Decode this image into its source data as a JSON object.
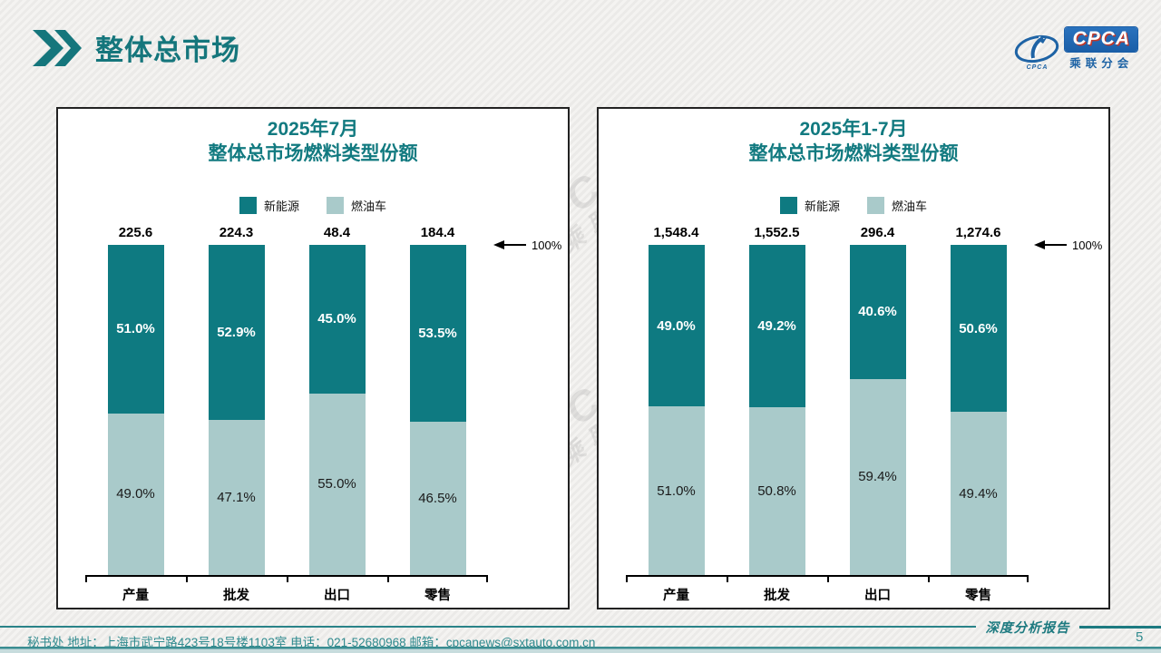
{
  "header": {
    "title": "整体总市场"
  },
  "logo": {
    "wordmark": "CPCA",
    "subtitle": "乘联分会"
  },
  "watermark": {
    "line1": "CPCA",
    "line2": "乘联"
  },
  "chart_data": [
    {
      "type": "bar",
      "stacked": true,
      "title_line1": "2025年7月",
      "title_line2": "整体总市场燃料类型份额",
      "categories": [
        "产量",
        "批发",
        "出口",
        "零售"
      ],
      "totals": [
        225.6,
        224.3,
        48.4,
        184.4
      ],
      "total_labels": [
        "225.6",
        "224.3",
        "48.4",
        "184.4"
      ],
      "series": [
        {
          "name": "新能源",
          "color": "#0e7a81",
          "values_pct": [
            51.0,
            52.9,
            45.0,
            53.5
          ],
          "pct_labels": [
            "51.0%",
            "52.9%",
            "45.0%",
            "53.5%"
          ]
        },
        {
          "name": "燃油车",
          "color": "#a9caca",
          "values_pct": [
            49.0,
            47.1,
            55.0,
            46.5
          ],
          "pct_labels": [
            "49.0%",
            "47.1%",
            "55.0%",
            "46.5%"
          ]
        }
      ],
      "axis_note": "100%",
      "ylim": [
        0,
        100
      ],
      "legend_position": "top",
      "grid": false
    },
    {
      "type": "bar",
      "stacked": true,
      "title_line1": "2025年1-7月",
      "title_line2": "整体总市场燃料类型份额",
      "categories": [
        "产量",
        "批发",
        "出口",
        "零售"
      ],
      "totals": [
        1548.4,
        1552.5,
        296.4,
        1274.6
      ],
      "total_labels": [
        "1,548.4",
        "1,552.5",
        "296.4",
        "1,274.6"
      ],
      "series": [
        {
          "name": "新能源",
          "color": "#0e7a81",
          "values_pct": [
            49.0,
            49.2,
            40.6,
            50.6
          ],
          "pct_labels": [
            "49.0%",
            "49.2%",
            "40.6%",
            "50.6%"
          ]
        },
        {
          "name": "燃油车",
          "color": "#a9caca",
          "values_pct": [
            51.0,
            50.8,
            59.4,
            49.4
          ],
          "pct_labels": [
            "51.0%",
            "50.8%",
            "59.4%",
            "49.4%"
          ]
        }
      ],
      "axis_note": "100%",
      "ylim": [
        0,
        100
      ],
      "legend_position": "top",
      "grid": false
    }
  ],
  "footer": {
    "info": "秘书处   地址：上海市武宁路423号18号楼1103室  电话：021-52680968   邮箱：cpcanews@sxtauto.com.cn",
    "report_label": "深度分析报告",
    "page_number": "5"
  },
  "colors": {
    "accent_teal": "#15767c",
    "ev_teal": "#0e7a81",
    "fuel_gray": "#a9caca",
    "footer_teal": "#2f8a8e",
    "logo_blue": "#1e63a5"
  }
}
